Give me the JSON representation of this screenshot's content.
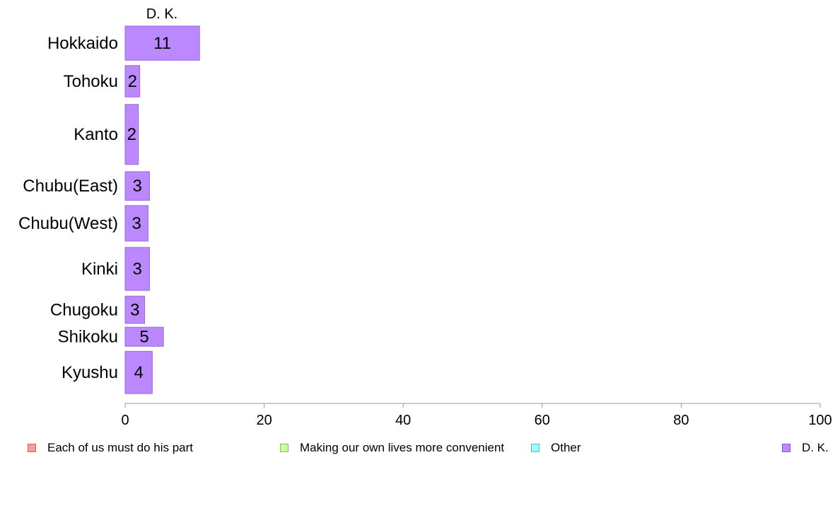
{
  "chart_data": {
    "type": "bar",
    "orientation": "horizontal",
    "stacked": true,
    "categories": [
      "Hokkaido",
      "Tohoku",
      "Kanto",
      "Chubu(East)",
      "Chubu(West)",
      "Kinki",
      "Chugoku",
      "Shikoku",
      "Kyushu"
    ],
    "category_weights": [
      5,
      4.6,
      8.8,
      4.2,
      5.2,
      6.3,
      4,
      2.8,
      6.2
    ],
    "series": [
      {
        "name": "Each of us must do his part",
        "color": "#ff9999",
        "values": [
          0,
          0,
          0,
          0,
          0,
          0,
          0,
          0,
          0
        ]
      },
      {
        "name": "Making our own lives more convenient",
        "color": "#ccff99",
        "values": [
          0,
          0,
          0,
          0,
          0,
          0,
          0,
          0,
          0
        ]
      },
      {
        "name": "Other",
        "color": "#99ffff",
        "values": [
          0,
          0,
          0,
          0,
          0,
          0,
          0,
          0,
          0
        ]
      },
      {
        "name": "D. K.",
        "color": "#bb88ff",
        "values": [
          10.7,
          2.1,
          1.9,
          3.5,
          3.3,
          3.5,
          2.8,
          5.5,
          3.9
        ]
      }
    ],
    "data_labels": [
      "11",
      "2",
      "2",
      "3",
      "3",
      "3",
      "3",
      "5",
      "4"
    ],
    "visible_series_title": "D. K.",
    "xlim": [
      0,
      100
    ],
    "xticks": [
      "0",
      "20",
      "40",
      "60",
      "80",
      "100"
    ],
    "grid": false,
    "legend_position": "bottom"
  }
}
